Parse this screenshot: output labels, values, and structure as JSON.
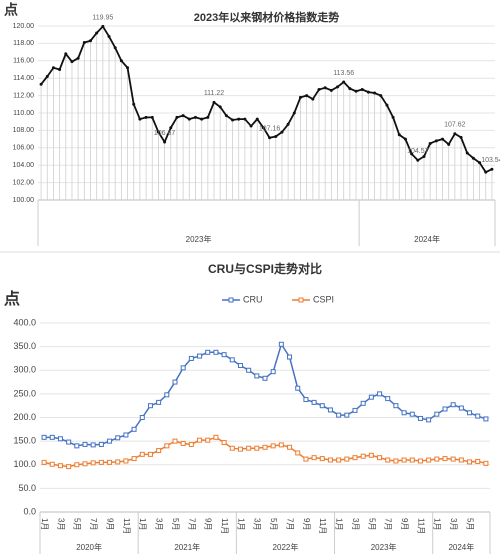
{
  "chart_data": [
    {
      "type": "line",
      "title": "2023年以来钢材价格指数走势",
      "y_label": "点",
      "categories": [
        null,
        null,
        null,
        null,
        null,
        null,
        null,
        null,
        null,
        null,
        null,
        null,
        null,
        null,
        null,
        null,
        null,
        null,
        null,
        null,
        null,
        null,
        null,
        null,
        null,
        null,
        null,
        null,
        null,
        null,
        null,
        null,
        null,
        null,
        null,
        null,
        null,
        null,
        null,
        null,
        null,
        null,
        null,
        null,
        null,
        null,
        null,
        null,
        null,
        null,
        null,
        null,
        null,
        null,
        null,
        null,
        null,
        null,
        null,
        null,
        null,
        null,
        null,
        null,
        null,
        null,
        null,
        null,
        null,
        null,
        null,
        null,
        null,
        null
      ],
      "groups": [
        {
          "label": "2023年",
          "count": 52
        },
        {
          "label": "2024年",
          "count": 22
        }
      ],
      "series": [
        {
          "name": "钢材价格指数",
          "color": "#111111",
          "values": [
            113.3,
            114.2,
            115.2,
            115.0,
            116.8,
            115.9,
            116.3,
            118.1,
            118.3,
            119.2,
            119.95,
            118.8,
            117.5,
            116.0,
            115.2,
            111.0,
            109.3,
            109.5,
            109.5,
            107.8,
            106.67,
            108.3,
            109.5,
            109.7,
            109.3,
            109.5,
            109.3,
            109.5,
            111.22,
            110.7,
            109.7,
            109.2,
            109.3,
            109.3,
            108.5,
            109.3,
            108.3,
            107.16,
            107.3,
            107.8,
            108.7,
            110.0,
            111.8,
            112.0,
            111.6,
            112.7,
            112.9,
            112.6,
            113.0,
            113.56,
            112.8,
            112.5,
            112.7,
            112.4,
            112.3,
            112.0,
            110.9,
            109.5,
            107.5,
            107.0,
            105.3,
            104.57,
            105.0,
            106.5,
            106.8,
            107.0,
            106.4,
            107.62,
            107.2,
            105.4,
            104.8,
            104.3,
            103.2,
            103.54
          ],
          "value_labels": [
            null,
            null,
            null,
            null,
            null,
            null,
            null,
            null,
            null,
            null,
            "119.95",
            null,
            null,
            null,
            null,
            null,
            null,
            null,
            null,
            null,
            "106.67",
            null,
            null,
            null,
            null,
            null,
            null,
            null,
            "111.22",
            null,
            null,
            null,
            null,
            null,
            null,
            null,
            null,
            "107.16",
            null,
            null,
            null,
            null,
            null,
            null,
            null,
            null,
            null,
            null,
            null,
            "113.56",
            null,
            null,
            null,
            null,
            null,
            null,
            null,
            null,
            null,
            null,
            null,
            "104.57",
            null,
            null,
            null,
            null,
            null,
            "107.62",
            null,
            null,
            null,
            null,
            null,
            "103.54"
          ]
        }
      ],
      "ylim": [
        100,
        120
      ],
      "yticks": [
        {
          "value": 100,
          "label": "100.00"
        },
        {
          "value": 102,
          "label": "102.00"
        },
        {
          "value": 104,
          "label": "104.00"
        },
        {
          "value": 106,
          "label": "106.00"
        },
        {
          "value": 108,
          "label": "108.00"
        },
        {
          "value": 110,
          "label": "110.00"
        },
        {
          "value": 112,
          "label": "112.00"
        },
        {
          "value": 114,
          "label": "114.00"
        },
        {
          "value": 116,
          "label": "116.00"
        },
        {
          "value": 118,
          "label": "118.00"
        },
        {
          "value": 120,
          "label": "120.00"
        }
      ],
      "grid": true,
      "drop_lines": true,
      "legend": false
    },
    {
      "type": "line",
      "title": "CRU与CSPI走势对比",
      "y_label": "点",
      "categories": [
        "1月",
        null,
        "3月",
        null,
        "5月",
        null,
        "7月",
        null,
        "9月",
        null,
        "11月",
        null,
        "1月",
        null,
        "3月",
        null,
        "5月",
        null,
        "7月",
        null,
        "9月",
        null,
        "11月",
        null,
        "1月",
        null,
        "3月",
        null,
        "5月",
        null,
        "7月",
        null,
        "9月",
        null,
        "11月",
        null,
        "1月",
        null,
        "3月",
        null,
        "5月",
        null,
        "7月",
        null,
        "9月",
        null,
        "11月",
        null,
        "1月",
        null,
        "3月",
        null,
        "5月",
        null,
        null
      ],
      "groups": [
        {
          "label": "2020年",
          "count": 12
        },
        {
          "label": "2021年",
          "count": 12
        },
        {
          "label": "2022年",
          "count": 12
        },
        {
          "label": "2023年",
          "count": 12
        },
        {
          "label": "2024年",
          "count": 7
        }
      ],
      "series": [
        {
          "name": "CRU",
          "color": "#4472c4",
          "values": [
            158,
            158,
            155,
            148,
            140,
            143,
            142,
            143,
            150,
            157,
            163,
            175,
            200,
            225,
            232,
            248,
            275,
            305,
            325,
            330,
            338,
            338,
            333,
            322,
            310,
            300,
            288,
            283,
            297,
            355,
            328,
            262,
            238,
            232,
            225,
            216,
            205,
            205,
            215,
            230,
            243,
            250,
            240,
            225,
            210,
            207,
            198,
            195,
            207,
            218,
            227,
            220,
            210,
            203,
            197
          ]
        },
        {
          "name": "CSPI",
          "color": "#ed7d31",
          "values": [
            105,
            101,
            98,
            96,
            100,
            102,
            104,
            105,
            105,
            106,
            108,
            113,
            122,
            122,
            130,
            140,
            150,
            145,
            143,
            152,
            152,
            158,
            147,
            135,
            133,
            135,
            135,
            137,
            140,
            142,
            137,
            125,
            112,
            115,
            113,
            110,
            110,
            112,
            115,
            118,
            120,
            115,
            110,
            108,
            110,
            110,
            108,
            110,
            112,
            113,
            112,
            110,
            106,
            107,
            103
          ]
        }
      ],
      "ylim": [
        0,
        400
      ],
      "yticks": [
        {
          "value": 0,
          "label": "0.0"
        },
        {
          "value": 50,
          "label": "50.0"
        },
        {
          "value": 100,
          "label": "100.0"
        },
        {
          "value": 150,
          "label": "150.0"
        },
        {
          "value": 200,
          "label": "200.0"
        },
        {
          "value": 250,
          "label": "250.0"
        },
        {
          "value": 300,
          "label": "300.0"
        },
        {
          "value": 350,
          "label": "350.0"
        },
        {
          "value": 400,
          "label": "400.0"
        }
      ],
      "grid": true,
      "drop_lines": false,
      "legend": true
    }
  ]
}
